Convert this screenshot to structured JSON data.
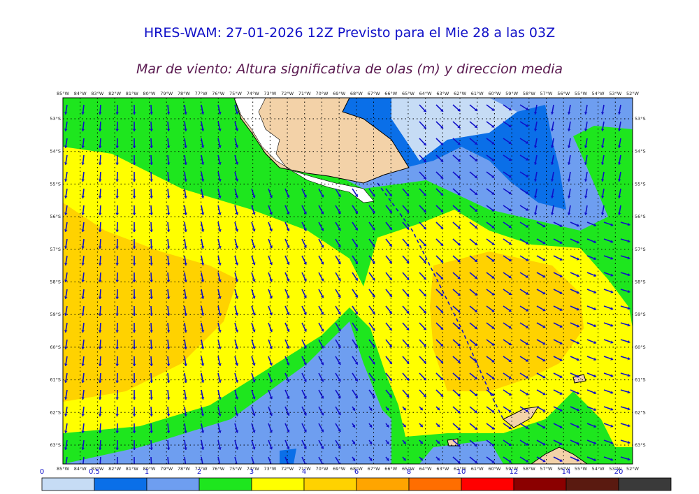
{
  "title": "HRES-WAM: 27-01-2026 12Z Previsto para el Mie 28 a las 03Z",
  "subtitle": "Mar de viento: Altura significativa de olas (m) y direccion media",
  "lon_labels": [
    "85°W",
    "84°W",
    "83°W",
    "82°W",
    "81°W",
    "80°W",
    "79°W",
    "78°W",
    "77°W",
    "76°W",
    "75°W",
    "74°W",
    "73°W",
    "72°W",
    "71°W",
    "70°W",
    "69°W",
    "68°W",
    "67°W",
    "66°W",
    "65°W",
    "64°W",
    "63°W",
    "62°W",
    "61°W",
    "60°W",
    "59°W",
    "58°W",
    "57°W",
    "56°W",
    "55°W",
    "54°W",
    "53°W",
    "52°W"
  ],
  "lat_labels": [
    "53°S",
    "54°S",
    "55°S",
    "56°S",
    "57°S",
    "58°S",
    "59°S",
    "60°S",
    "61°S",
    "62°S",
    "63°S"
  ],
  "colorbar": {
    "ticks": [
      "0",
      "0.5",
      "1",
      "2",
      "3",
      "4",
      "6",
      "8",
      "10",
      "12",
      "14",
      "20"
    ],
    "colors": [
      "#c6dcf5",
      "#0a6fe8",
      "#6e9ef0",
      "#1ee61e",
      "#ffff00",
      "#ffd200",
      "#ffa500",
      "#ff6e00",
      "#ff0000",
      "#8b0000",
      "#5a1a10",
      "#3a3a3a"
    ]
  },
  "map_colors": {
    "land": "#f3d2a8",
    "ocean_base": "#6e9ef0",
    "wave_0_05": "#c6dcf5",
    "wave_05_1": "#0a6fe8",
    "wave_2_3": "#1ee61e",
    "wave_3_4": "#ffff00",
    "wave_4_6": "#ffd200",
    "arrow": "#1010c8"
  }
}
